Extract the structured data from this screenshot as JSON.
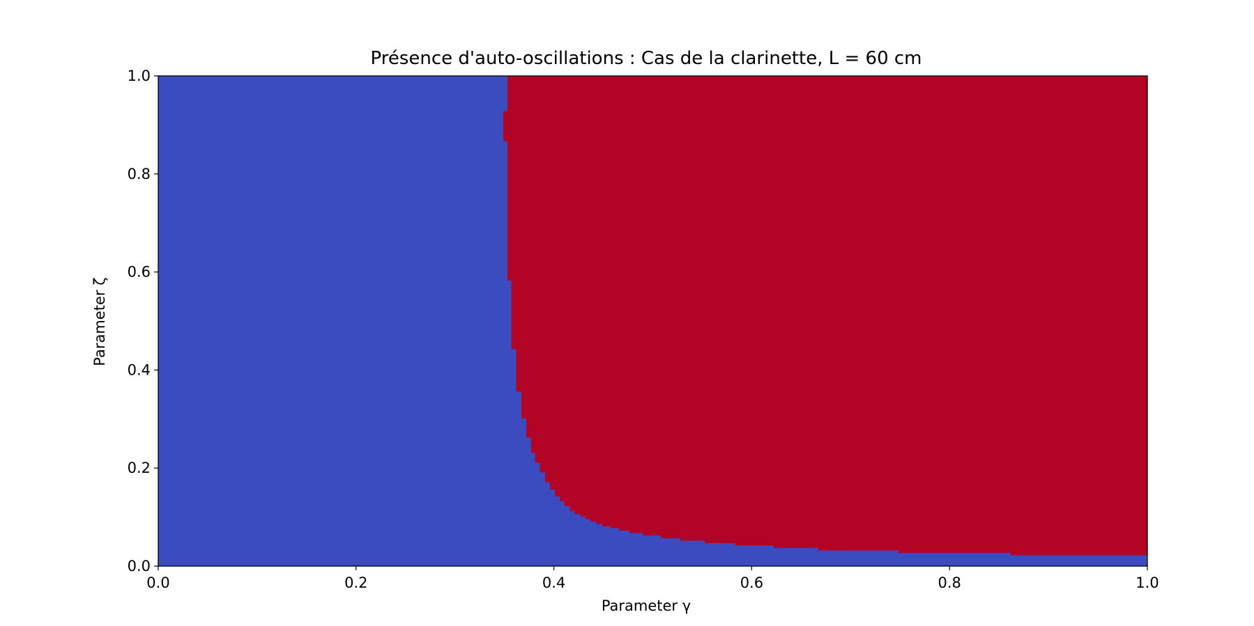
{
  "chart_data": {
    "type": "heatmap",
    "title": "Présence d'auto-oscillations : Cas de la clarinette, L = 60 cm",
    "xlabel": "Parameter γ",
    "ylabel": "Parameter ζ",
    "xlim": [
      0.0,
      1.0
    ],
    "ylim": [
      0.0,
      1.0
    ],
    "xticks": [
      "0.0",
      "0.2",
      "0.4",
      "0.6",
      "0.8",
      "1.0"
    ],
    "yticks": [
      "0.0",
      "0.2",
      "0.4",
      "0.6",
      "0.8",
      "1.0"
    ],
    "grid": false,
    "colors": {
      "no_oscillation": "#3b4cc0",
      "oscillation": "#b40426"
    },
    "regions": [
      {
        "state": "no auto-oscillation",
        "color": "#3b4cc0"
      },
      {
        "state": "auto-oscillation",
        "color": "#b40426"
      }
    ],
    "boundary": {
      "description": "minimum γ for auto-oscillation at a given ζ (staircase)",
      "zeta": [
        1.0,
        0.928,
        0.867,
        0.583,
        0.443,
        0.357,
        0.302,
        0.263,
        0.232,
        0.212,
        0.192,
        0.172,
        0.157,
        0.143,
        0.133,
        0.123,
        0.113,
        0.107,
        0.102,
        0.097,
        0.092,
        0.087,
        0.082,
        0.078,
        0.073,
        0.068,
        0.063,
        0.058,
        0.053,
        0.048,
        0.043,
        0.038,
        0.033,
        0.028,
        0.023
      ],
      "gamma_min": [
        0.353,
        0.349,
        0.353,
        0.357,
        0.362,
        0.367,
        0.372,
        0.377,
        0.381,
        0.386,
        0.391,
        0.396,
        0.401,
        0.406,
        0.411,
        0.416,
        0.421,
        0.427,
        0.432,
        0.437,
        0.443,
        0.449,
        0.457,
        0.466,
        0.476,
        0.49,
        0.508,
        0.528,
        0.553,
        0.583,
        0.622,
        0.667,
        0.748,
        0.862,
        1.0
      ]
    }
  }
}
